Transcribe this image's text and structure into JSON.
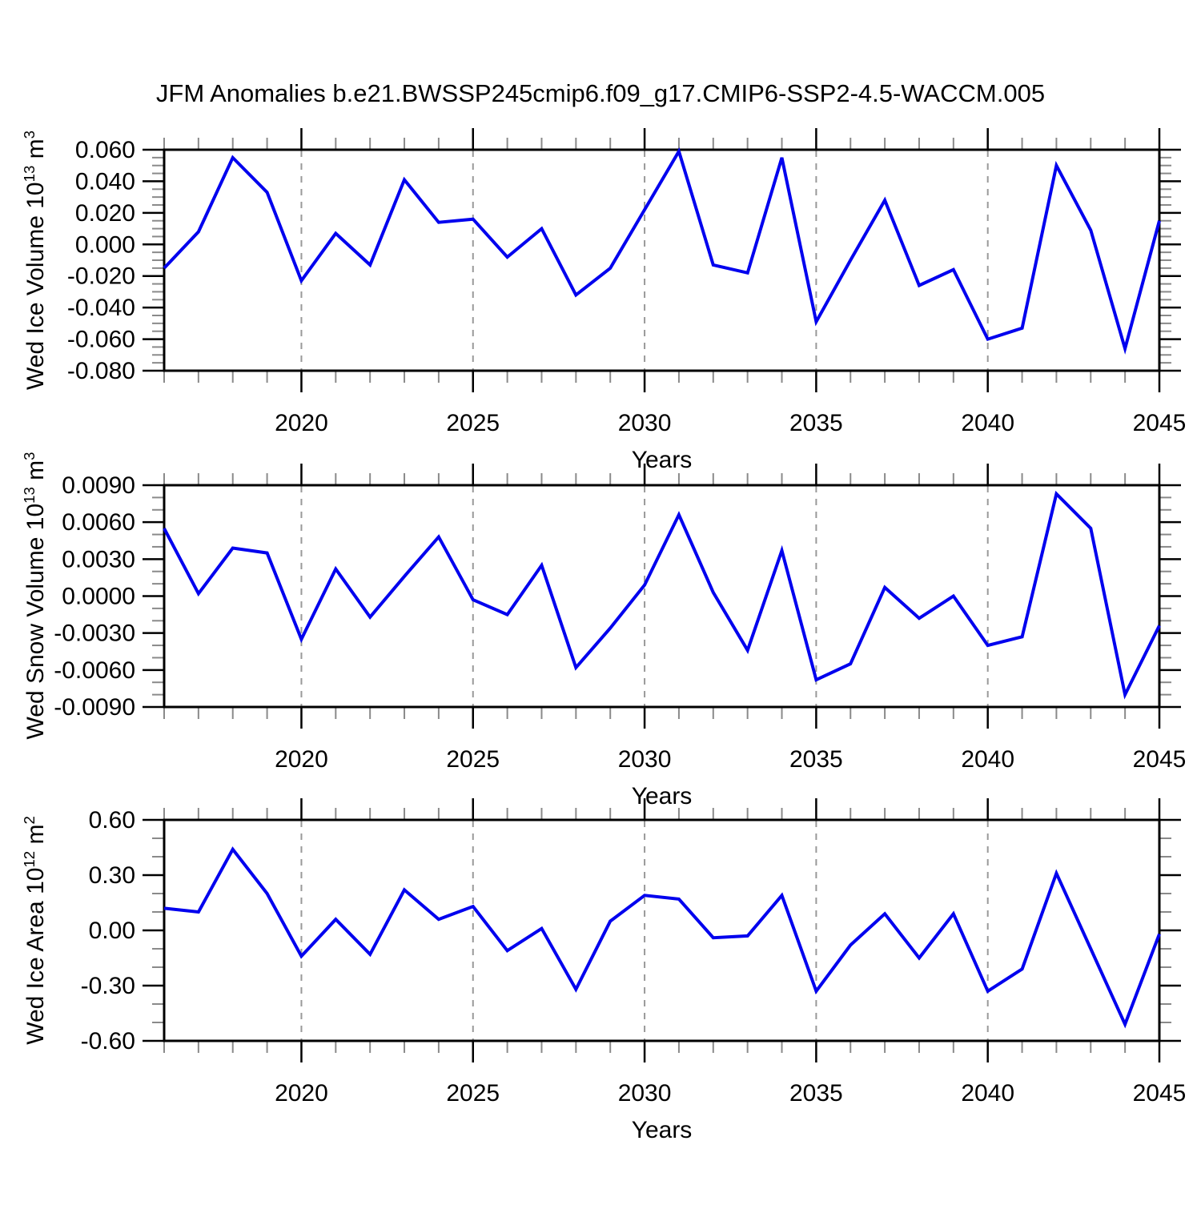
{
  "title": "JFM Anomalies b.e21.BWSSP245cmip6.f09_g17.CMIP6-SSP2-4.5-WACCM.005",
  "colors": {
    "line": "#0000ee",
    "axis": "#000000",
    "grid": "#999999",
    "minor_tick": "#8a8a8a",
    "background": "#ffffff"
  },
  "years": [
    2016,
    2017,
    2018,
    2019,
    2020,
    2021,
    2022,
    2023,
    2024,
    2025,
    2026,
    2027,
    2028,
    2029,
    2030,
    2031,
    2032,
    2033,
    2034,
    2035,
    2036,
    2037,
    2038,
    2039,
    2040,
    2041,
    2042,
    2043,
    2044,
    2045
  ],
  "x_axis": {
    "label": "Years",
    "min": 2016,
    "max": 2045,
    "major_ticks": [
      2020,
      2025,
      2030,
      2035,
      2040,
      2045
    ],
    "tick_labels": [
      "2020",
      "2025",
      "2030",
      "2035",
      "2040",
      "2045"
    ],
    "minor_step": 1,
    "gridlines": [
      2020,
      2025,
      2030,
      2035,
      2040
    ]
  },
  "chart_data": [
    {
      "type": "line",
      "id": "wed-ice-volume",
      "ylabel": "Wed Ice Volume 10^13 m^3",
      "ylabel_parts": {
        "pre": "Wed Ice Volume 10",
        "sup1": "13",
        "mid": " m",
        "sup2": "3"
      },
      "xlabel": "Years",
      "ylim": [
        -0.08,
        0.06
      ],
      "ymajor": 0.02,
      "yminor": 0.005,
      "ytick_values": [
        0.06,
        0.04,
        0.02,
        0.0,
        -0.02,
        -0.04,
        -0.06,
        -0.08
      ],
      "ytick_labels": [
        "0.060",
        "0.040",
        "0.020",
        "0.000",
        "-0.020",
        "-0.040",
        "-0.060",
        "-0.080"
      ],
      "values": [
        -0.015,
        0.008,
        0.055,
        0.033,
        -0.023,
        0.007,
        -0.013,
        0.041,
        0.014,
        0.016,
        -0.008,
        0.01,
        -0.032,
        -0.015,
        0.022,
        0.059,
        -0.013,
        -0.018,
        0.055,
        -0.049,
        -0.01,
        0.028,
        -0.026,
        -0.016,
        -0.06,
        -0.053,
        0.05,
        0.009,
        -0.066,
        0.015
      ]
    },
    {
      "type": "line",
      "id": "wed-snow-volume",
      "ylabel": "Wed Snow Volume 10^13 m^3",
      "ylabel_parts": {
        "pre": "Wed Snow Volume 10",
        "sup1": "13",
        "mid": " m",
        "sup2": "3"
      },
      "xlabel": "Years",
      "ylim": [
        -0.009,
        0.009
      ],
      "ymajor": 0.003,
      "yminor": 0.001,
      "ytick_values": [
        0.009,
        0.006,
        0.003,
        0.0,
        -0.003,
        -0.006,
        -0.009
      ],
      "ytick_labels": [
        "0.0090",
        "0.0060",
        "0.0030",
        "0.0000",
        "-0.0030",
        "-0.0060",
        "-0.0090"
      ],
      "values": [
        0.0055,
        0.0002,
        0.0039,
        0.0035,
        -0.0035,
        0.0022,
        -0.0017,
        0.0016,
        0.0048,
        -0.0003,
        -0.0015,
        0.0025,
        -0.0058,
        -0.0026,
        0.0009,
        0.0066,
        0.0003,
        -0.0044,
        0.0037,
        -0.0068,
        -0.0055,
        0.0007,
        -0.0018,
        0.0,
        -0.004,
        -0.0033,
        0.0083,
        0.0055,
        -0.008,
        -0.0024
      ]
    },
    {
      "type": "line",
      "id": "wed-ice-area",
      "ylabel": "Wed Ice Area 10^12 m^2",
      "ylabel_parts": {
        "pre": "Wed Ice Area 10",
        "sup1": "12",
        "mid": " m",
        "sup2": "2"
      },
      "xlabel": "Years",
      "ylim": [
        -0.6,
        0.6
      ],
      "ymajor": 0.3,
      "yminor": 0.1,
      "ytick_values": [
        0.6,
        0.3,
        0.0,
        -0.3,
        -0.6
      ],
      "ytick_labels": [
        "0.60",
        "0.30",
        "0.00",
        "-0.30",
        "-0.60"
      ],
      "values": [
        0.12,
        0.1,
        0.44,
        0.2,
        -0.14,
        0.06,
        -0.13,
        0.22,
        0.06,
        0.13,
        -0.11,
        0.01,
        -0.32,
        0.05,
        0.19,
        0.17,
        -0.04,
        -0.03,
        0.19,
        -0.33,
        -0.08,
        0.09,
        -0.15,
        0.09,
        -0.33,
        -0.21,
        0.31,
        -0.1,
        -0.51,
        -0.02
      ]
    }
  ]
}
